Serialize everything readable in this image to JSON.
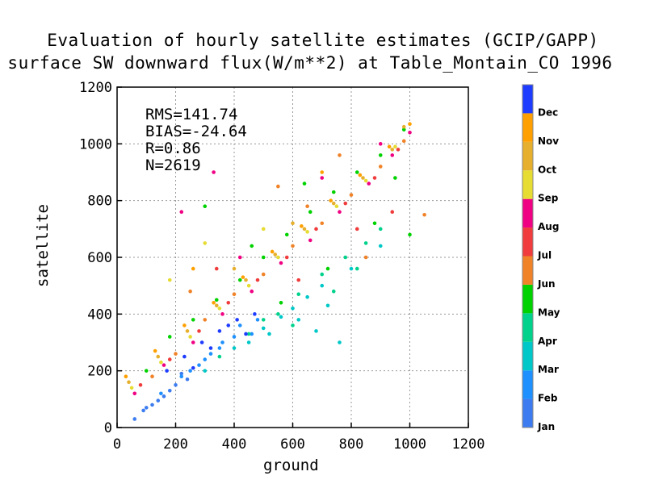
{
  "chart_data": {
    "type": "scatter",
    "title": "Evaluation of hourly satellite estimates (GCIP/GAPP)",
    "subtitle": "surface SW downward flux(W/m**2) at Table_Montain_CO 1996",
    "xlabel": "ground",
    "ylabel": "satellite",
    "xlim": [
      0,
      1200
    ],
    "ylim": [
      0,
      1200
    ],
    "x_ticks": [
      "0",
      "200",
      "400",
      "600",
      "800",
      "1000",
      "1200"
    ],
    "y_ticks": [
      "0",
      "200",
      "400",
      "600",
      "800",
      "1000",
      "1200"
    ],
    "grid": true,
    "stats": {
      "rms": "RMS=141.74",
      "bias": "BIAS=-24.64",
      "r": "R=0.86",
      "n": "N=2619"
    },
    "colorbar": {
      "placement": "right",
      "labels": [
        "Jan",
        "Feb",
        "Mar",
        "Apr",
        "May",
        "Jun",
        "Jul",
        "Aug",
        "Sep",
        "Oct",
        "Nov",
        "Dec"
      ],
      "colors": [
        "#3c7cf0",
        "#1e90ff",
        "#00c8c8",
        "#00d28c",
        "#00d200",
        "#f08228",
        "#f03c3c",
        "#f00082",
        "#e6dc32",
        "#e6af2d",
        "#ffa000",
        "#1e3cff"
      ]
    },
    "series": [
      {
        "month": "Jan",
        "points": [
          [
            60,
            30
          ],
          [
            120,
            80
          ],
          [
            90,
            60
          ],
          [
            160,
            110
          ],
          [
            200,
            150
          ],
          [
            240,
            170
          ],
          [
            140,
            95
          ],
          [
            180,
            130
          ],
          [
            100,
            70
          ],
          [
            220,
            190
          ]
        ]
      },
      {
        "month": "Feb",
        "points": [
          [
            150,
            120
          ],
          [
            220,
            180
          ],
          [
            300,
            240
          ],
          [
            350,
            280
          ],
          [
            280,
            220
          ],
          [
            400,
            320
          ],
          [
            420,
            360
          ],
          [
            480,
            380
          ],
          [
            360,
            300
          ],
          [
            250,
            200
          ],
          [
            320,
            260
          ],
          [
            460,
            330
          ]
        ]
      },
      {
        "month": "Mar",
        "points": [
          [
            300,
            200
          ],
          [
            400,
            280
          ],
          [
            500,
            350
          ],
          [
            560,
            390
          ],
          [
            600,
            420
          ],
          [
            650,
            460
          ],
          [
            700,
            500
          ],
          [
            520,
            330
          ],
          [
            620,
            380
          ],
          [
            720,
            430
          ],
          [
            800,
            560
          ],
          [
            760,
            300
          ],
          [
            900,
            640
          ],
          [
            450,
            300
          ],
          [
            680,
            340
          ]
        ]
      },
      {
        "month": "Apr",
        "points": [
          [
            350,
            250
          ],
          [
            450,
            330
          ],
          [
            550,
            400
          ],
          [
            620,
            470
          ],
          [
            700,
            540
          ],
          [
            780,
            600
          ],
          [
            850,
            650
          ],
          [
            900,
            700
          ],
          [
            600,
            360
          ],
          [
            740,
            480
          ],
          [
            820,
            560
          ],
          [
            500,
            380
          ]
        ]
      },
      {
        "month": "May",
        "points": [
          [
            100,
            200
          ],
          [
            180,
            320
          ],
          [
            260,
            380
          ],
          [
            340,
            450
          ],
          [
            420,
            520
          ],
          [
            500,
            600
          ],
          [
            580,
            680
          ],
          [
            660,
            760
          ],
          [
            740,
            830
          ],
          [
            820,
            900
          ],
          [
            900,
            960
          ],
          [
            980,
            1050
          ],
          [
            560,
            440
          ],
          [
            720,
            560
          ],
          [
            880,
            720
          ],
          [
            1000,
            680
          ],
          [
            950,
            880
          ],
          [
            460,
            640
          ],
          [
            300,
            780
          ],
          [
            640,
            860
          ]
        ]
      },
      {
        "month": "Jun",
        "points": [
          [
            120,
            180
          ],
          [
            200,
            260
          ],
          [
            300,
            380
          ],
          [
            400,
            470
          ],
          [
            500,
            540
          ],
          [
            600,
            640
          ],
          [
            700,
            720
          ],
          [
            800,
            820
          ],
          [
            900,
            920
          ],
          [
            980,
            1010
          ],
          [
            1050,
            750
          ],
          [
            850,
            600
          ],
          [
            650,
            780
          ],
          [
            250,
            480
          ],
          [
            550,
            850
          ],
          [
            760,
            960
          ]
        ]
      },
      {
        "month": "Jul",
        "points": [
          [
            80,
            150
          ],
          [
            180,
            240
          ],
          [
            280,
            340
          ],
          [
            380,
            440
          ],
          [
            480,
            520
          ],
          [
            580,
            600
          ],
          [
            680,
            700
          ],
          [
            780,
            790
          ],
          [
            880,
            880
          ],
          [
            960,
            980
          ],
          [
            340,
            560
          ],
          [
            620,
            520
          ],
          [
            820,
            700
          ],
          [
            940,
            760
          ]
        ]
      },
      {
        "month": "Aug",
        "points": [
          [
            60,
            120
          ],
          [
            160,
            220
          ],
          [
            260,
            300
          ],
          [
            360,
            400
          ],
          [
            460,
            480
          ],
          [
            560,
            580
          ],
          [
            660,
            660
          ],
          [
            760,
            760
          ],
          [
            860,
            860
          ],
          [
            940,
            960
          ],
          [
            1000,
            1040
          ],
          [
            420,
            600
          ],
          [
            220,
            760
          ],
          [
            700,
            880
          ],
          [
            900,
            1000
          ],
          [
            330,
            900
          ]
        ]
      },
      {
        "month": "Sep",
        "points": [
          [
            50,
            140
          ],
          [
            150,
            230
          ],
          [
            250,
            320
          ],
          [
            350,
            420
          ],
          [
            450,
            500
          ],
          [
            550,
            600
          ],
          [
            650,
            690
          ],
          [
            750,
            780
          ],
          [
            850,
            870
          ],
          [
            950,
            990
          ],
          [
            300,
            650
          ],
          [
            500,
            700
          ],
          [
            180,
            520
          ]
        ]
      },
      {
        "month": "Oct",
        "points": [
          [
            40,
            160
          ],
          [
            140,
            250
          ],
          [
            240,
            340
          ],
          [
            340,
            430
          ],
          [
            440,
            520
          ],
          [
            540,
            610
          ],
          [
            640,
            700
          ],
          [
            740,
            790
          ],
          [
            840,
            880
          ],
          [
            940,
            980
          ],
          [
            980,
            1060
          ],
          [
            400,
            560
          ],
          [
            600,
            720
          ]
        ]
      },
      {
        "month": "Nov",
        "points": [
          [
            30,
            180
          ],
          [
            130,
            270
          ],
          [
            230,
            360
          ],
          [
            330,
            440
          ],
          [
            430,
            530
          ],
          [
            530,
            620
          ],
          [
            630,
            710
          ],
          [
            730,
            800
          ],
          [
            830,
            890
          ],
          [
            930,
            990
          ],
          [
            1000,
            1070
          ],
          [
            260,
            560
          ],
          [
            700,
            900
          ]
        ]
      },
      {
        "month": "Dec",
        "points": [
          [
            170,
            200
          ],
          [
            230,
            250
          ],
          [
            290,
            300
          ],
          [
            350,
            340
          ],
          [
            410,
            380
          ],
          [
            470,
            400
          ],
          [
            260,
            210
          ],
          [
            320,
            280
          ],
          [
            380,
            360
          ],
          [
            440,
            330
          ]
        ]
      }
    ]
  }
}
